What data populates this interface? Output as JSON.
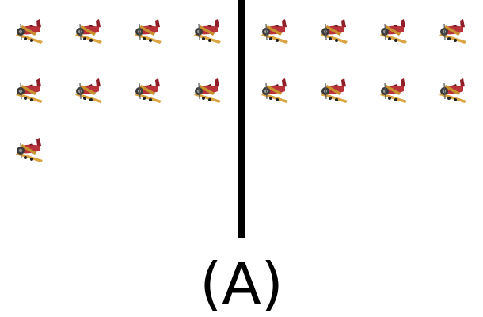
{
  "caption": "(A)",
  "icon": "toy-airplane-icon",
  "left_group": {
    "count": 9
  },
  "right_group": {
    "count": 8
  },
  "colors": {
    "wing": "#D9A441",
    "body": "#B8323A",
    "propeller": "#3A3A3A",
    "divider": "#000000"
  }
}
